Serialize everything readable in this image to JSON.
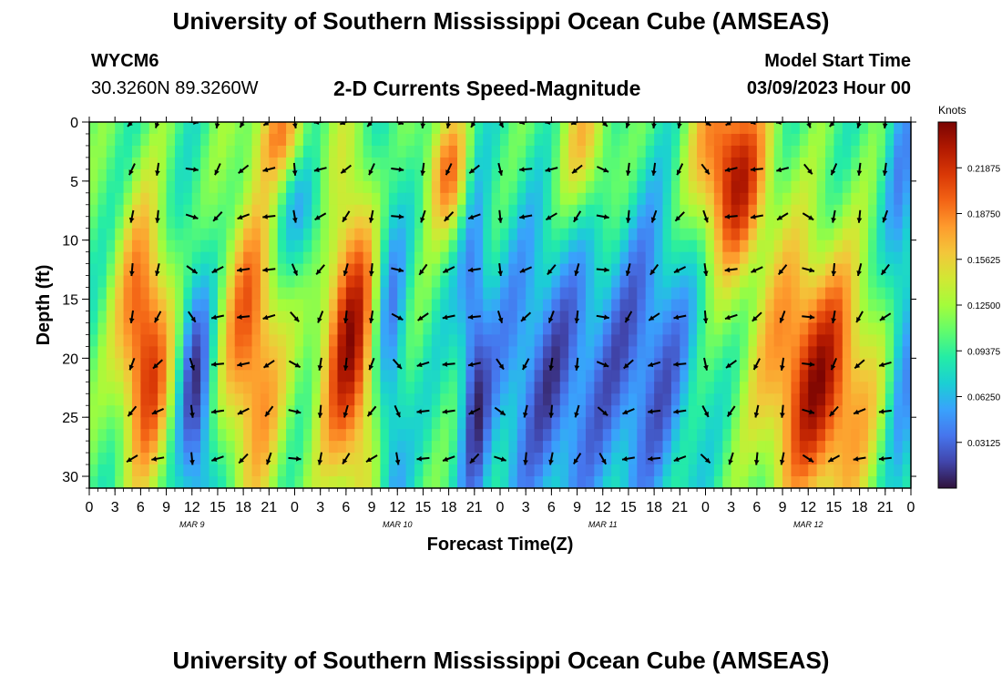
{
  "header": {
    "title": "University of Southern Mississippi Ocean Cube (AMSEAS)",
    "station": "WYCM6",
    "coords": "30.3260N  89.3260W",
    "subtitle": "2-D Currents Speed-Magnitude",
    "model_start_label": "Model Start Time",
    "model_start_value": "03/09/2023 Hour 00",
    "footer_title": "University of Southern Mississippi Ocean Cube (AMSEAS)"
  },
  "colorbar": {
    "unit": "Knots",
    "ticks": [
      "0.21875",
      "0.18750",
      "0.15625",
      "0.12500",
      "0.09375",
      "0.06250",
      "0.03125"
    ],
    "tick_values": [
      0.21875,
      0.1875,
      0.15625,
      0.125,
      0.09375,
      0.0625,
      0.03125
    ],
    "range": [
      0,
      0.25
    ],
    "colors": [
      "#30123b",
      "#4145ab",
      "#4675ed",
      "#39a2fc",
      "#1bcfd4",
      "#24eca6",
      "#61fc6c",
      "#a4fc3b",
      "#d1e834",
      "#f3c63a",
      "#fe9b2d",
      "#f36315",
      "#d93806",
      "#b11901",
      "#7a0402"
    ]
  },
  "chart_data": {
    "type": "heatmap",
    "title": "2-D Currents Speed-Magnitude",
    "xlabel": "Forecast Time(Z)",
    "ylabel": "Depth (ft)",
    "x_range_hours": [
      0,
      96
    ],
    "ylim": [
      31,
      0
    ],
    "x_tick_labels": [
      "0",
      "3",
      "6",
      "9",
      "12",
      "15",
      "18",
      "21",
      "0",
      "3",
      "6",
      "9",
      "12",
      "15",
      "18",
      "21",
      "0",
      "3",
      "6",
      "9",
      "12",
      "15",
      "18",
      "21",
      "0",
      "3",
      "6",
      "9",
      "12",
      "15",
      "18",
      "21",
      "0"
    ],
    "y_ticks": [
      0,
      5,
      10,
      15,
      20,
      25,
      30
    ],
    "date_labels": [
      {
        "label": "MAR 9",
        "hour": 12
      },
      {
        "label": "MAR 10",
        "hour": 36
      },
      {
        "label": "MAR 11",
        "hour": 60
      },
      {
        "label": "MAR 12",
        "hour": 84
      }
    ],
    "vector_depths": [
      0,
      4,
      8,
      12.5,
      16.5,
      20.5,
      24.5,
      28.5
    ],
    "vector_hours": [
      5,
      8,
      12,
      15,
      18,
      21,
      24,
      27,
      30,
      33,
      36,
      39,
      42,
      45,
      48,
      51,
      54,
      57,
      60,
      63,
      66,
      69,
      72,
      75,
      78,
      81,
      84,
      87,
      90,
      93
    ]
  }
}
